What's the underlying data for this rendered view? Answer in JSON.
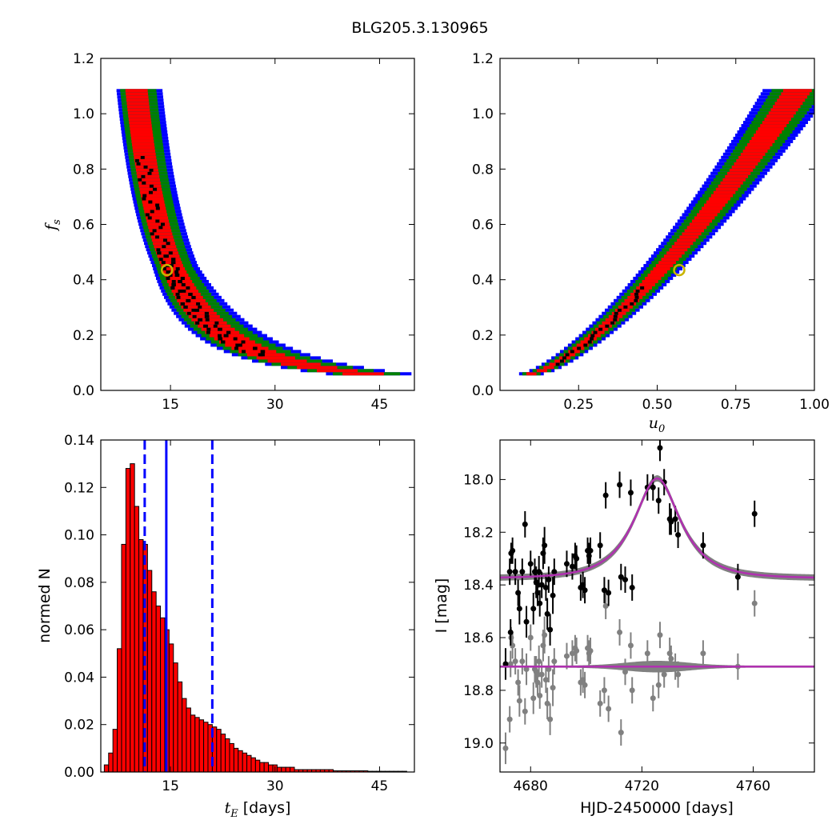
{
  "title": "BLG205.3.130965",
  "colors": {
    "sigma1": "#ff0000",
    "sigma2": "#008000",
    "sigma3": "#0000ff",
    "peak": "#000000",
    "best_fit_marker": "#c8b400",
    "histogram_fill": "#ff0000",
    "median_line": "#0000ff",
    "model_curve": "#b030b0",
    "model_band": "#808080",
    "data_points": "#000000",
    "residual_points": "#808080"
  },
  "chart_data": [
    {
      "type": "heatmap",
      "panel": "fs-vs-tE",
      "ylabel": "f_s",
      "xlabel": "",
      "xlim": [
        5,
        50
      ],
      "ylim": [
        0.0,
        1.2
      ],
      "xticks": [
        "15",
        "30",
        "45"
      ],
      "xtick_values": [
        15,
        30,
        45
      ],
      "yticks": [
        "0.0",
        "0.2",
        "0.4",
        "0.6",
        "0.8",
        "1.0",
        "1.2"
      ],
      "ytick_values": [
        0.0,
        0.2,
        0.4,
        0.6,
        0.8,
        1.0,
        1.2
      ],
      "fs_range": [
        0.06,
        1.09
      ],
      "ridge": {
        "model": "tE = A / fs^0.55 + B",
        "A": 8.6,
        "B": 1.5
      },
      "width_days": {
        "sigma1": 1.6,
        "sigma2": 2.6,
        "sigma3": 3.3
      },
      "best_fit": {
        "tE": 14.5,
        "fs": 0.435
      }
    },
    {
      "type": "heatmap",
      "panel": "fs-vs-u0",
      "ylabel": "",
      "xlabel": "u_0",
      "xlim": [
        0.0,
        1.0
      ],
      "ylim": [
        0.0,
        1.2
      ],
      "xticks": [
        "0.25",
        "0.50",
        "0.75",
        "1.00"
      ],
      "xtick_values": [
        0.25,
        0.5,
        0.75,
        1.0
      ],
      "yticks": [
        "0.0",
        "0.2",
        "0.4",
        "0.6",
        "0.8",
        "1.0",
        "1.2"
      ],
      "ytick_values": [
        0.0,
        0.2,
        0.4,
        0.6,
        0.8,
        1.0,
        1.2
      ],
      "fs_range": [
        0.06,
        1.09
      ],
      "ridge": {
        "model": "u0 = 0.10 + 0.85 * ((fs - 0.06) / 1.03)^0.72"
      },
      "width_u0": {
        "sigma1": 0.032,
        "sigma2": 0.058,
        "sigma3": 0.078
      },
      "best_fit": {
        "u0": 0.57,
        "fs": 0.435
      }
    },
    {
      "type": "bar",
      "panel": "tE-histogram",
      "ylabel": "normed N",
      "xlabel": "t_E [days]",
      "xlim": [
        5,
        50
      ],
      "ylim": [
        0.0,
        0.14
      ],
      "xticks": [
        "15",
        "30",
        "45"
      ],
      "xtick_values": [
        15,
        30,
        45
      ],
      "yticks": [
        "0.00",
        "0.02",
        "0.04",
        "0.06",
        "0.08",
        "0.10",
        "0.12",
        "0.14"
      ],
      "ytick_values": [
        0.0,
        0.02,
        0.04,
        0.06,
        0.08,
        0.1,
        0.12,
        0.14
      ],
      "bin_start": 5.5,
      "bin_width": 0.62,
      "values": [
        0.003,
        0.008,
        0.018,
        0.052,
        0.096,
        0.128,
        0.13,
        0.112,
        0.098,
        0.096,
        0.085,
        0.076,
        0.07,
        0.065,
        0.06,
        0.054,
        0.046,
        0.038,
        0.031,
        0.027,
        0.024,
        0.023,
        0.022,
        0.021,
        0.02,
        0.019,
        0.018,
        0.016,
        0.014,
        0.012,
        0.01,
        0.009,
        0.008,
        0.007,
        0.006,
        0.005,
        0.004,
        0.004,
        0.003,
        0.003,
        0.002,
        0.002,
        0.002,
        0.002,
        0.001,
        0.001,
        0.001,
        0.001,
        0.001,
        0.001,
        0.001,
        0.001,
        0.001,
        0.0005,
        0.0005,
        0.0005,
        0.0005,
        0.0005,
        0.0005,
        0.0005,
        0.0005,
        0.0003,
        0.0003,
        0.0003,
        0.0003,
        0.0003,
        0.0003,
        0.0003,
        0.0003,
        0.0003
      ],
      "median": 14.4,
      "lower_bound": 11.3,
      "upper_bound": 21.0
    },
    {
      "type": "scatter",
      "panel": "lightcurve",
      "ylabel": "I [mag]",
      "xlabel": "HJD-2450000 [days]",
      "xlim": [
        4669,
        4782
      ],
      "ylim": [
        19.11,
        17.85
      ],
      "y_inverted": true,
      "xticks": [
        "4680",
        "4720",
        "4760"
      ],
      "xtick_values": [
        4680,
        4720,
        4760
      ],
      "yticks": [
        "18.0",
        "18.2",
        "18.4",
        "18.6",
        "18.8",
        "19.0"
      ],
      "ytick_values": [
        18.0,
        18.2,
        18.4,
        18.6,
        18.8,
        19.0
      ],
      "model": {
        "t0": 4725.5,
        "tE": 14.5,
        "u0": 0.57,
        "fs": 0.435,
        "baseline": 18.375,
        "residual_offset": 18.71
      },
      "data": [
        [
          4671.0,
          18.7,
          0.06
        ],
        [
          4672.5,
          18.35,
          0.05
        ],
        [
          4673.0,
          18.28,
          0.04
        ],
        [
          4673.5,
          18.27,
          0.05
        ],
        [
          4672.8,
          18.58,
          0.05
        ],
        [
          4674.5,
          18.35,
          0.05
        ],
        [
          4675.5,
          18.43,
          0.05
        ],
        [
          4676.0,
          18.49,
          0.06
        ],
        [
          4677.0,
          18.35,
          0.05
        ],
        [
          4678.0,
          18.17,
          0.05
        ],
        [
          4678.5,
          18.54,
          0.06
        ],
        [
          4680.0,
          18.32,
          0.05
        ],
        [
          4681.0,
          18.49,
          0.06
        ],
        [
          4681.5,
          18.35,
          0.05
        ],
        [
          4682.0,
          18.39,
          0.06
        ],
        [
          4682.5,
          18.43,
          0.05
        ],
        [
          4683.0,
          18.35,
          0.06
        ],
        [
          4683.3,
          18.47,
          0.05
        ],
        [
          4684.0,
          18.4,
          0.05
        ],
        [
          4684.5,
          18.28,
          0.06
        ],
        [
          4685.0,
          18.25,
          0.07
        ],
        [
          4685.5,
          18.41,
          0.05
        ],
        [
          4686.0,
          18.51,
          0.06
        ],
        [
          4686.5,
          18.38,
          0.05
        ],
        [
          4687.0,
          18.57,
          0.06
        ],
        [
          4688.0,
          18.44,
          0.07
        ],
        [
          4688.5,
          18.35,
          0.05
        ],
        [
          4693.0,
          18.32,
          0.05
        ],
        [
          4695.0,
          18.33,
          0.05
        ],
        [
          4696.0,
          18.29,
          0.05
        ],
        [
          4696.5,
          18.3,
          0.05
        ],
        [
          4698.0,
          18.41,
          0.05
        ],
        [
          4698.8,
          18.4,
          0.05
        ],
        [
          4699.5,
          18.42,
          0.05
        ],
        [
          4700.5,
          18.27,
          0.05
        ],
        [
          4701.0,
          18.29,
          0.05
        ],
        [
          4701.5,
          18.27,
          0.05
        ],
        [
          4705.0,
          18.25,
          0.05
        ],
        [
          4706.5,
          18.42,
          0.05
        ],
        [
          4707.0,
          18.06,
          0.05
        ],
        [
          4708.0,
          18.43,
          0.05
        ],
        [
          4712.0,
          18.02,
          0.05
        ],
        [
          4712.5,
          18.37,
          0.05
        ],
        [
          4714.0,
          18.38,
          0.05
        ],
        [
          4716.0,
          18.05,
          0.05
        ],
        [
          4716.5,
          18.41,
          0.05
        ],
        [
          4722.0,
          18.03,
          0.05
        ],
        [
          4724.0,
          18.03,
          0.05
        ],
        [
          4726.0,
          18.08,
          0.05
        ],
        [
          4726.5,
          17.88,
          0.05
        ],
        [
          4728.0,
          18.01,
          0.05
        ],
        [
          4730.0,
          18.15,
          0.06
        ],
        [
          4730.5,
          18.16,
          0.05
        ],
        [
          4732.0,
          18.15,
          0.05
        ],
        [
          4733.0,
          18.21,
          0.05
        ],
        [
          4742.0,
          18.25,
          0.05
        ],
        [
          4754.5,
          18.37,
          0.05
        ],
        [
          4760.5,
          18.13,
          0.05
        ]
      ],
      "residuals": [
        [
          4671.0,
          19.02,
          0.06
        ],
        [
          4672.5,
          18.91,
          0.05
        ],
        [
          4673.0,
          18.6,
          0.04
        ],
        [
          4673.5,
          18.63,
          0.05
        ],
        [
          4672.8,
          18.7,
          0.05
        ],
        [
          4674.5,
          18.69,
          0.05
        ],
        [
          4675.5,
          18.77,
          0.05
        ],
        [
          4676.0,
          18.84,
          0.06
        ],
        [
          4677.0,
          18.69,
          0.05
        ],
        [
          4678.0,
          18.88,
          0.05
        ],
        [
          4678.5,
          18.72,
          0.06
        ],
        [
          4680.0,
          18.6,
          0.05
        ],
        [
          4681.0,
          18.83,
          0.06
        ],
        [
          4681.5,
          18.72,
          0.05
        ],
        [
          4682.0,
          18.73,
          0.06
        ],
        [
          4682.5,
          18.77,
          0.05
        ],
        [
          4683.0,
          18.69,
          0.06
        ],
        [
          4683.3,
          18.82,
          0.05
        ],
        [
          4684.0,
          18.74,
          0.05
        ],
        [
          4684.5,
          18.63,
          0.06
        ],
        [
          4685.0,
          18.59,
          0.07
        ],
        [
          4685.5,
          18.76,
          0.05
        ],
        [
          4686.0,
          18.85,
          0.06
        ],
        [
          4686.5,
          18.72,
          0.05
        ],
        [
          4687.0,
          18.91,
          0.06
        ],
        [
          4688.0,
          18.79,
          0.07
        ],
        [
          4688.5,
          18.69,
          0.05
        ],
        [
          4693.0,
          18.67,
          0.05
        ],
        [
          4695.0,
          18.66,
          0.05
        ],
        [
          4696.0,
          18.64,
          0.05
        ],
        [
          4696.5,
          18.65,
          0.05
        ],
        [
          4698.0,
          18.77,
          0.05
        ],
        [
          4698.8,
          18.76,
          0.05
        ],
        [
          4699.5,
          18.78,
          0.05
        ],
        [
          4700.5,
          18.64,
          0.05
        ],
        [
          4701.0,
          18.66,
          0.05
        ],
        [
          4701.5,
          18.65,
          0.05
        ],
        [
          4705.0,
          18.85,
          0.05
        ],
        [
          4706.5,
          18.8,
          0.05
        ],
        [
          4707.0,
          18.48,
          0.05
        ],
        [
          4708.0,
          18.87,
          0.05
        ],
        [
          4712.0,
          18.58,
          0.05
        ],
        [
          4712.5,
          18.96,
          0.05
        ],
        [
          4714.0,
          18.73,
          0.05
        ],
        [
          4716.0,
          18.63,
          0.05
        ],
        [
          4716.5,
          18.8,
          0.05
        ],
        [
          4722.0,
          18.66,
          0.05
        ],
        [
          4724.0,
          18.83,
          0.05
        ],
        [
          4726.0,
          18.78,
          0.05
        ],
        [
          4726.5,
          18.59,
          0.05
        ],
        [
          4728.0,
          18.74,
          0.05
        ],
        [
          4730.0,
          18.66,
          0.06
        ],
        [
          4730.5,
          18.68,
          0.05
        ],
        [
          4732.0,
          18.71,
          0.05
        ],
        [
          4733.0,
          18.74,
          0.05
        ],
        [
          4742.0,
          18.66,
          0.05
        ],
        [
          4754.5,
          18.71,
          0.05
        ],
        [
          4760.5,
          18.47,
          0.05
        ]
      ]
    }
  ]
}
